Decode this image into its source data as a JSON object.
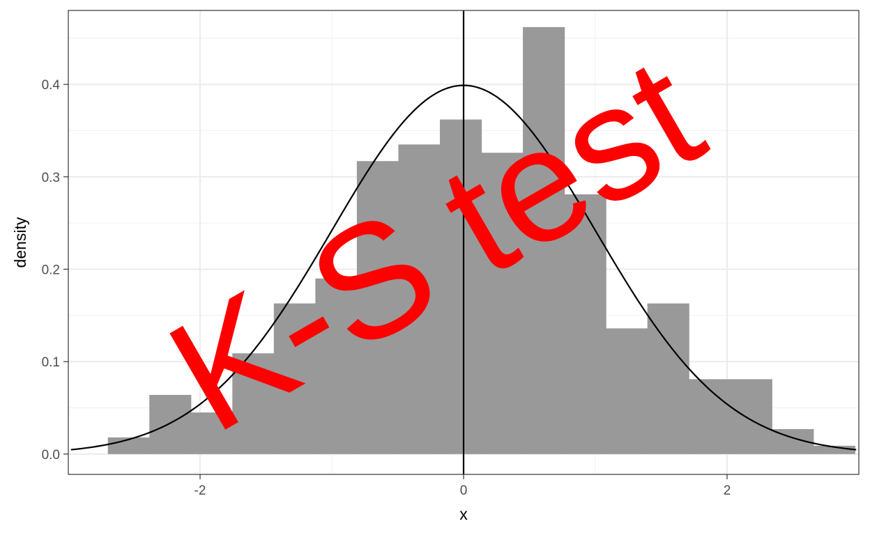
{
  "chart_data": {
    "type": "bar",
    "title": "",
    "xlabel": "x",
    "ylabel": "density",
    "xlim": [
      -3.0,
      3.0
    ],
    "ylim": [
      -0.022,
      0.48
    ],
    "grid": true,
    "x_ticks": [
      -2,
      0,
      2
    ],
    "x_tick_labels": [
      "-2",
      "0",
      "2"
    ],
    "y_ticks": [
      0.0,
      0.1,
      0.2,
      0.3,
      0.4
    ],
    "y_tick_labels": [
      "0.0",
      "0.1",
      "0.2",
      "0.3",
      "0.4"
    ],
    "bins": {
      "edges": [
        -2.7,
        -2.385,
        -2.07,
        -1.755,
        -1.44,
        -1.125,
        -0.81,
        -0.495,
        -0.18,
        0.135,
        0.45,
        0.765,
        1.08,
        1.395,
        1.71,
        2.025,
        2.34,
        2.655,
        2.97
      ],
      "density": [
        0.018,
        0.064,
        0.045,
        0.109,
        0.163,
        0.19,
        0.317,
        0.335,
        0.362,
        0.326,
        0.462,
        0.281,
        0.136,
        0.163,
        0.081,
        0.081,
        0.027,
        0.009
      ],
      "color": "#999999"
    },
    "curve": {
      "kind": "normal density",
      "mean": 0,
      "sd": 1,
      "x_range": [
        -2.98,
        2.98
      ],
      "color": "#000000"
    },
    "vline": {
      "x": 0,
      "color": "#000000"
    },
    "annotation": {
      "text": "K-S test",
      "color": "#ff0000",
      "rotation_deg": -30
    }
  }
}
